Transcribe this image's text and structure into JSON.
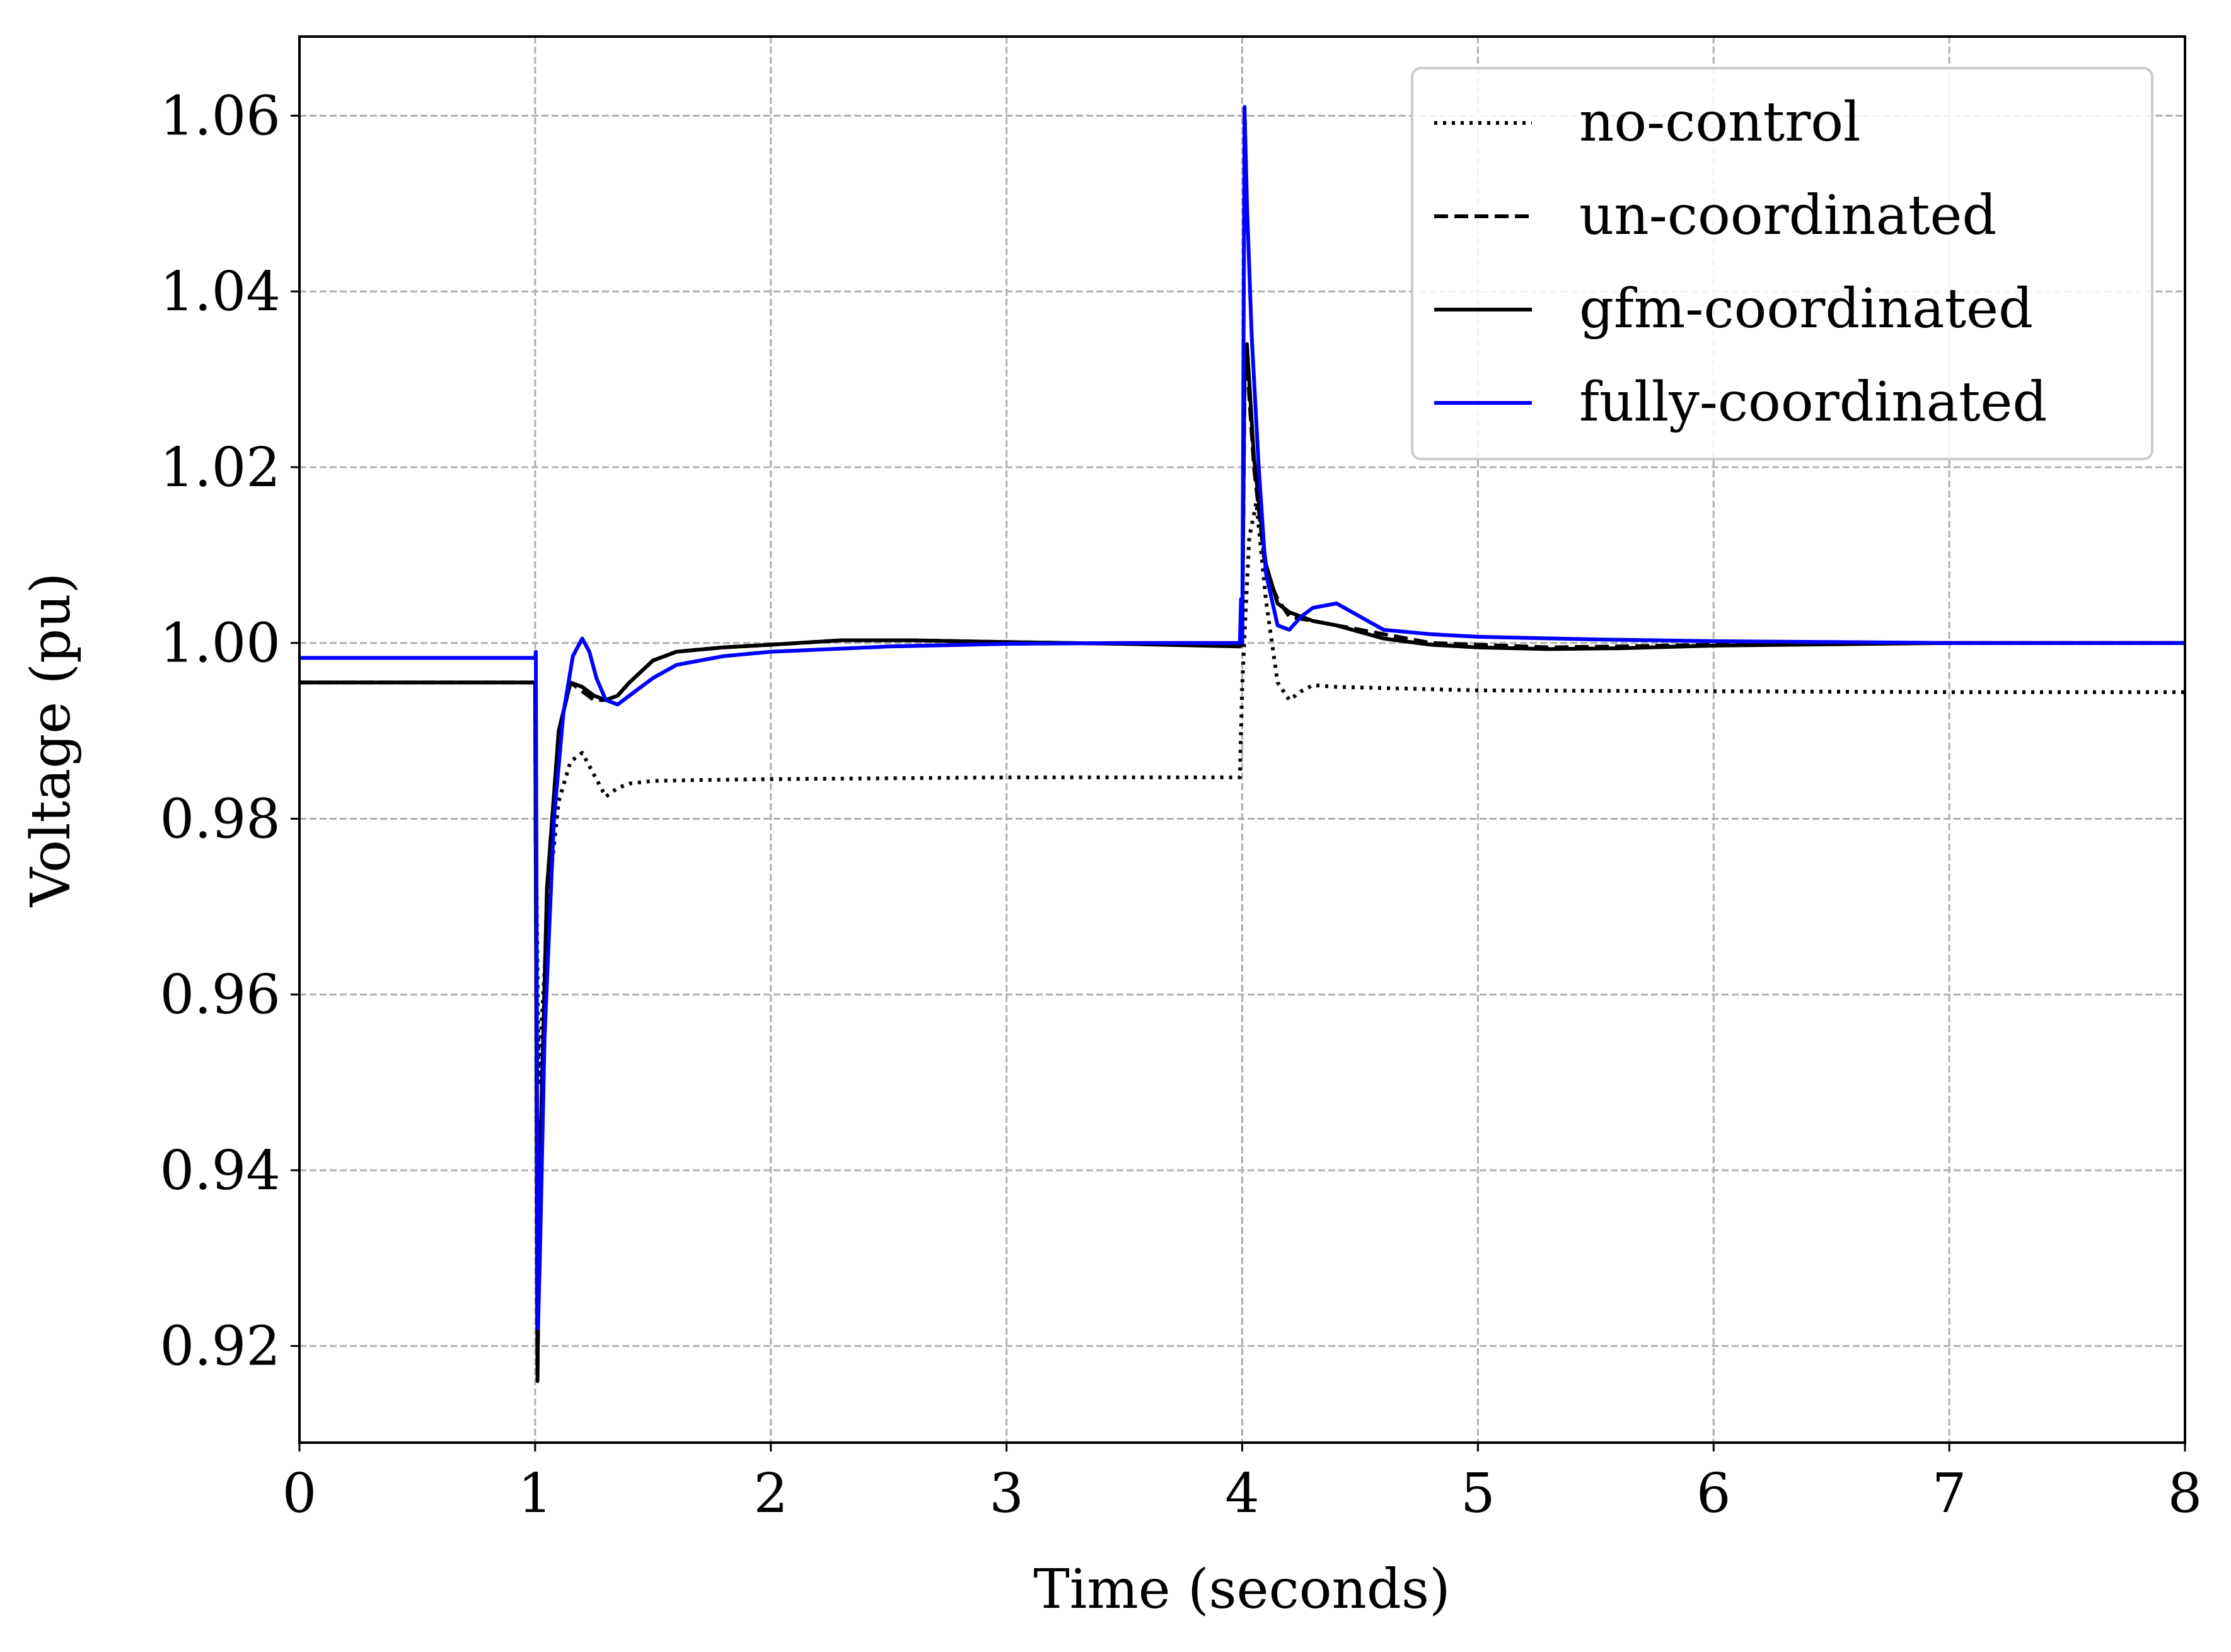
{
  "chart_data": {
    "type": "line",
    "title": "",
    "xlabel": "Time (seconds)",
    "ylabel": "Voltage (pu)",
    "xlim": [
      0,
      8
    ],
    "ylim": [
      0.909,
      1.069
    ],
    "xticks": [
      0,
      1,
      2,
      3,
      4,
      5,
      6,
      7,
      8
    ],
    "xtick_labels": [
      "0",
      "1",
      "2",
      "3",
      "4",
      "5",
      "6",
      "7",
      "8"
    ],
    "yticks": [
      0.92,
      0.94,
      0.96,
      0.98,
      1.0,
      1.02,
      1.04,
      1.06
    ],
    "ytick_labels": [
      "0.92",
      "0.94",
      "0.96",
      "0.98",
      "1.00",
      "1.02",
      "1.04",
      "1.06"
    ],
    "grid": true,
    "legend_position": "top-right",
    "series": [
      {
        "name": "no-control",
        "color": "#000000",
        "linestyle": "dotted",
        "x": [
          0,
          1.0,
          1.005,
          1.015,
          1.03,
          1.06,
          1.1,
          1.15,
          1.2,
          1.25,
          1.3,
          1.35,
          1.4,
          1.5,
          1.7,
          2.0,
          3.0,
          3.99,
          3.995,
          4.0,
          4.01,
          4.03,
          4.06,
          4.1,
          4.15,
          4.2,
          4.25,
          4.3,
          4.4,
          5.0,
          6.0,
          7.0,
          8.0
        ],
        "y": [
          0.9955,
          0.9955,
          0.975,
          0.95,
          0.958,
          0.972,
          0.982,
          0.9865,
          0.9875,
          0.985,
          0.9825,
          0.9835,
          0.984,
          0.9843,
          0.9844,
          0.9845,
          0.9847,
          0.9847,
          0.99,
          0.995,
          1.001,
          1.012,
          1.016,
          1.005,
          0.9955,
          0.9935,
          0.9945,
          0.9952,
          0.995,
          0.9946,
          0.9945,
          0.9944,
          0.9944
        ]
      },
      {
        "name": "un-coordinated",
        "color": "#000000",
        "linestyle": "dashed",
        "x": [
          0,
          1.0,
          1.005,
          1.01,
          1.02,
          1.05,
          1.1,
          1.15,
          1.2,
          1.25,
          1.3,
          1.35,
          1.4,
          1.5,
          1.6,
          1.8,
          2.0,
          2.3,
          2.6,
          3.0,
          3.5,
          3.99,
          4.0,
          4.01,
          4.02,
          4.05,
          4.1,
          4.15,
          4.2,
          4.3,
          4.4,
          4.6,
          4.8,
          5.0,
          5.3,
          5.6,
          6.0,
          7.0,
          8.0
        ],
        "y": [
          0.9955,
          0.9955,
          0.96,
          0.918,
          0.94,
          0.972,
          0.99,
          0.9955,
          0.9945,
          0.9935,
          0.9935,
          0.994,
          0.9955,
          0.998,
          0.999,
          0.9995,
          0.9998,
          1.0003,
          1.0003,
          1.0001,
          0.9999,
          0.9997,
          1.0,
          1.03,
          1.032,
          1.02,
          1.008,
          1.005,
          1.003,
          1.0025,
          1.002,
          1.001,
          1.0,
          0.9998,
          0.9995,
          0.9996,
          0.9998,
          1.0,
          1.0
        ]
      },
      {
        "name": "gfm-coordinated",
        "color": "#000000",
        "linestyle": "solid",
        "x": [
          0,
          1.0,
          1.005,
          1.01,
          1.02,
          1.05,
          1.1,
          1.15,
          1.2,
          1.25,
          1.3,
          1.35,
          1.4,
          1.5,
          1.6,
          1.8,
          2.0,
          2.3,
          2.6,
          3.0,
          3.5,
          3.99,
          4.0,
          4.01,
          4.02,
          4.05,
          4.1,
          4.15,
          4.2,
          4.3,
          4.4,
          4.6,
          4.8,
          5.0,
          5.3,
          5.6,
          6.0,
          7.0,
          8.0
        ],
        "y": [
          0.9955,
          0.9955,
          0.96,
          0.916,
          0.94,
          0.972,
          0.99,
          0.9955,
          0.995,
          0.994,
          0.9935,
          0.994,
          0.9955,
          0.998,
          0.999,
          0.9995,
          0.9998,
          1.0003,
          1.0003,
          1.0001,
          0.9999,
          0.9996,
          1.0,
          1.032,
          1.034,
          1.021,
          1.009,
          1.0045,
          1.0035,
          1.0025,
          1.002,
          1.0005,
          0.9998,
          0.9995,
          0.9993,
          0.9994,
          0.9997,
          1.0,
          1.0
        ]
      },
      {
        "name": "fully-coordinated",
        "color": "#0000ff",
        "linestyle": "solid",
        "x": [
          0,
          1.0,
          1.003,
          1.008,
          1.012,
          1.02,
          1.04,
          1.08,
          1.12,
          1.16,
          1.2,
          1.23,
          1.26,
          1.3,
          1.35,
          1.4,
          1.5,
          1.6,
          1.8,
          2.0,
          2.5,
          3.0,
          3.5,
          3.99,
          3.995,
          4.0,
          4.005,
          4.01,
          4.02,
          4.04,
          4.07,
          4.1,
          4.15,
          4.2,
          4.25,
          4.3,
          4.4,
          4.5,
          4.6,
          4.8,
          5.0,
          5.5,
          6.0,
          7.0,
          8.0
        ],
        "y": [
          0.9983,
          0.9983,
          0.999,
          0.95,
          0.922,
          0.93,
          0.955,
          0.98,
          0.992,
          0.9985,
          1.0005,
          0.999,
          0.996,
          0.9935,
          0.993,
          0.994,
          0.996,
          0.9975,
          0.9985,
          0.999,
          0.9996,
          0.9999,
          1.0,
          1.0,
          1.005,
          1.0,
          1.03,
          1.061,
          1.05,
          1.035,
          1.02,
          1.008,
          1.002,
          1.0015,
          1.003,
          1.004,
          1.0045,
          1.003,
          1.0015,
          1.001,
          1.0007,
          1.0004,
          1.0002,
          1.0,
          1.0
        ]
      }
    ]
  }
}
